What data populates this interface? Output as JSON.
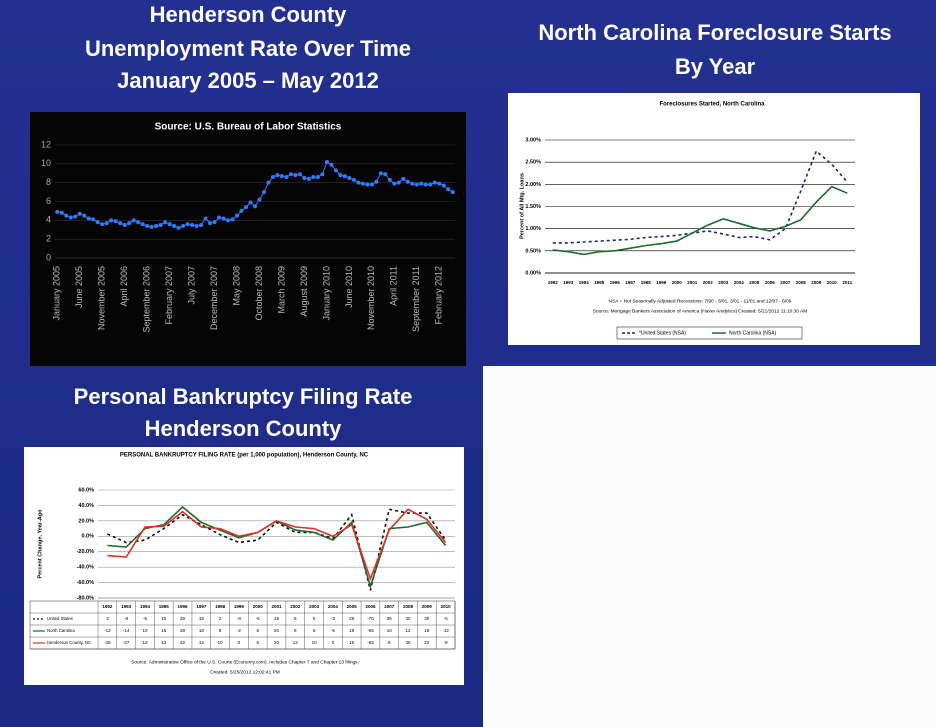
{
  "chart_data": [
    {
      "type": "line",
      "title": [
        "Henderson County",
        "Unemployment Rate Over Time",
        "January 2005 – May 2012"
      ],
      "subtitle": "Source:  U.S. Bureau of  Labor Statistics",
      "categories": [
        "January 2005",
        null,
        null,
        null,
        null,
        "June 2005",
        null,
        null,
        null,
        null,
        "November 2005",
        null,
        null,
        null,
        null,
        "April 2006",
        null,
        null,
        null,
        null,
        "September 2006",
        null,
        null,
        null,
        null,
        "February 2007",
        null,
        null,
        null,
        null,
        "July 2007",
        null,
        null,
        null,
        null,
        "December 2007",
        null,
        null,
        null,
        null,
        "May 2008",
        null,
        null,
        null,
        null,
        "October 2008",
        null,
        null,
        null,
        null,
        "March 2009",
        null,
        null,
        null,
        null,
        "August 2009",
        null,
        null,
        null,
        null,
        "January 2010",
        null,
        null,
        null,
        null,
        "June 2010",
        null,
        null,
        null,
        null,
        "November 2010",
        null,
        null,
        null,
        null,
        "April 2011",
        null,
        null,
        null,
        null,
        "September 2011",
        null,
        null,
        null,
        null,
        "February 2012",
        null,
        null,
        null
      ],
      "values": [
        4.9,
        4.8,
        4.5,
        4.3,
        4.4,
        4.7,
        4.5,
        4.2,
        4.1,
        3.8,
        3.6,
        3.7,
        4.0,
        3.9,
        3.7,
        3.5,
        3.7,
        4.0,
        3.8,
        3.6,
        3.4,
        3.3,
        3.4,
        3.5,
        3.8,
        3.6,
        3.4,
        3.2,
        3.4,
        3.6,
        3.5,
        3.4,
        3.5,
        4.2,
        3.7,
        3.8,
        4.3,
        4.2,
        4.0,
        4.1,
        4.5,
        5.0,
        5.4,
        5.9,
        5.5,
        6.2,
        7.0,
        8.0,
        8.6,
        8.8,
        8.7,
        8.6,
        8.9,
        8.8,
        8.9,
        8.5,
        8.4,
        8.6,
        8.6,
        8.9,
        10.2,
        9.9,
        9.3,
        8.8,
        8.7,
        8.5,
        8.3,
        8.0,
        7.9,
        7.8,
        7.8,
        8.1,
        9.0,
        8.9,
        8.3,
        7.9,
        8.0,
        8.4,
        8.1,
        7.9,
        7.8,
        7.9,
        7.8,
        7.8,
        8.0,
        7.9,
        7.7,
        7.3,
        7.0
      ],
      "color": "#2f7bff",
      "markers": true,
      "ylim": [
        0,
        12
      ],
      "yticks": [
        0,
        2,
        4,
        6,
        8,
        10,
        12
      ],
      "grid": true
    },
    {
      "type": "line",
      "title": [
        "North Carolina Foreclosure Starts",
        "By Year"
      ],
      "subtitle": "Foreclosures Started, North Carolina",
      "y_label": "Percent of All Mtg. Loans",
      "categories": [
        "1992",
        "1993",
        "1994",
        "1995",
        "1996",
        "1997",
        "1998",
        "1999",
        "2000",
        "2001",
        "2002",
        "2003",
        "2004",
        "2005",
        "2006",
        "2007",
        "2008",
        "2009",
        "2010",
        "2011"
      ],
      "series": [
        {
          "name": "*United States (NSA)",
          "color": "#1a237e",
          "dash": true,
          "values": [
            0.68,
            0.68,
            0.7,
            0.72,
            0.74,
            0.76,
            0.8,
            0.82,
            0.85,
            0.9,
            0.95,
            0.88,
            0.8,
            0.82,
            0.75,
            1.0,
            1.85,
            2.75,
            2.45,
            2.05
          ]
        },
        {
          "name": "North Carolina (NSA)",
          "color": "#1e6b2a",
          "values": [
            0.52,
            0.48,
            0.42,
            0.48,
            0.5,
            0.56,
            0.62,
            0.66,
            0.72,
            0.9,
            1.08,
            1.22,
            1.12,
            1.02,
            0.95,
            1.05,
            1.2,
            1.6,
            1.95,
            1.8
          ]
        }
      ],
      "ylim": [
        0,
        3
      ],
      "yticks": [
        {
          "value": 0,
          "label": "0.00%"
        },
        {
          "value": 0.5,
          "label": "0.50%"
        },
        {
          "value": 1,
          "label": "1.00%"
        },
        {
          "value": 1.5,
          "label": "1.50%"
        },
        {
          "value": 2,
          "label": "2.00%"
        },
        {
          "value": 2.5,
          "label": "2.50%"
        },
        {
          "value": 3,
          "label": "3.00%"
        }
      ],
      "grid": true,
      "notes": [
        "NSA = Not Seasonally Adjusted     Recessions: 7/90 - 3/91, 3/01 - 11/01 and 12/07 - 6/09",
        "Source: Mortgage Bankers Association of America (Haver Analytics)     Created: 5/21/2012 11:10:30 AM"
      ]
    },
    {
      "type": "line",
      "title": [
        "Personal Bankruptcy Filing Rate",
        "Henderson County"
      ],
      "subtitle": "PERSONAL BANKRUPTCY FILING RATE (per 1,000 population), Henderson County, NC",
      "y_label": "Percent Change, Year-Ago",
      "categories": [
        "1992",
        "1993",
        "1994",
        "1995",
        "1996",
        "1997",
        "1998",
        "1999",
        "2000",
        "2001",
        "2002",
        "2003",
        "2004",
        "2005",
        "2006",
        "2007",
        "2008",
        "2009",
        "2010"
      ],
      "series": [
        {
          "name": "United States",
          "color": "#111111",
          "dash": true,
          "values": [
            3,
            -8,
            -5,
            10,
            28,
            15,
            2,
            -8,
            -5,
            18,
            5,
            5,
            -3,
            28,
            -70,
            35,
            30,
            30,
            -5
          ]
        },
        {
          "name": "North Carolina",
          "color": "#1e6b2a",
          "values": [
            -12,
            -14,
            10,
            15,
            38,
            18,
            8,
            -2,
            5,
            20,
            8,
            5,
            -5,
            18,
            -65,
            10,
            12,
            18,
            -12
          ]
        },
        {
          "name": "Henderson County, NC",
          "color": "#e0302a",
          "values": [
            -25,
            -27,
            12,
            13,
            32,
            12,
            10,
            0,
            5,
            20,
            12,
            10,
            0,
            15,
            -55,
            8,
            35,
            22,
            -8
          ]
        }
      ],
      "ylim": [
        -80,
        60
      ],
      "yticks": [
        {
          "value": -80,
          "label": "-80.0%"
        },
        {
          "value": -60,
          "label": "-60.0%"
        },
        {
          "value": -40,
          "label": "-40.0%"
        },
        {
          "value": -20,
          "label": "-20.0%"
        },
        {
          "value": 0,
          "label": "0.0%"
        },
        {
          "value": 20,
          "label": "20.0%"
        },
        {
          "value": 40,
          "label": "40.0%"
        },
        {
          "value": 60,
          "label": "60.0%"
        }
      ],
      "grid": true,
      "table": true,
      "notes": [
        "Source: Administrative Office of the U.S. Courts (Economy.com). Includes Chapter 7 and Chapter 13 filings.",
        "Created: 5/25/2012 12:02:41 PM"
      ]
    }
  ]
}
